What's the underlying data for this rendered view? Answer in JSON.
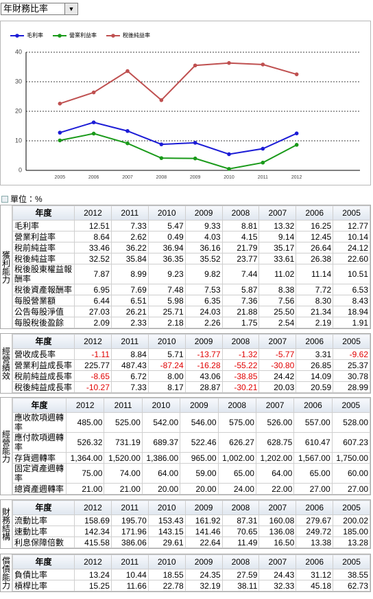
{
  "dropdown": {
    "label": "年財務比率"
  },
  "chart_data": {
    "type": "line",
    "categories": [
      "2005",
      "2006",
      "2007",
      "2008",
      "2009",
      "2010",
      "2011",
      "2012"
    ],
    "series": [
      {
        "name": "毛利率",
        "color": "#1c1cd6",
        "values": [
          12.77,
          16.25,
          13.32,
          8.81,
          9.33,
          5.47,
          7.33,
          12.51
        ]
      },
      {
        "name": "營業利益率",
        "color": "#1a9a1a",
        "values": [
          10.14,
          12.45,
          9.14,
          4.15,
          4.03,
          0.49,
          2.62,
          8.64
        ]
      },
      {
        "name": "稅後純益率",
        "color": "#bf5050",
        "values": [
          22.6,
          26.38,
          33.61,
          23.77,
          35.52,
          36.35,
          35.84,
          32.52
        ]
      }
    ],
    "ylim": [
      0,
      40
    ],
    "yticks": [
      0,
      10,
      20,
      30,
      40
    ],
    "grid": true
  },
  "unit": "單位：%",
  "sections": [
    {
      "label": "獲利能力",
      "header": [
        "年度",
        "2012",
        "2011",
        "2010",
        "2009",
        "2008",
        "2007",
        "2006",
        "2005"
      ],
      "rows": [
        [
          "毛利率",
          "12.51",
          "7.33",
          "5.47",
          "9.33",
          "8.81",
          "13.32",
          "16.25",
          "12.77"
        ],
        [
          "營業利益率",
          "8.64",
          "2.62",
          "0.49",
          "4.03",
          "4.15",
          "9.14",
          "12.45",
          "10.14"
        ],
        [
          "稅前純益率",
          "33.46",
          "36.22",
          "36.94",
          "36.16",
          "21.79",
          "35.17",
          "26.64",
          "24.12"
        ],
        [
          "稅後純益率",
          "32.52",
          "35.84",
          "36.35",
          "35.52",
          "23.77",
          "33.61",
          "26.38",
          "22.60"
        ],
        [
          "稅後股東權益報酬率",
          "7.87",
          "8.99",
          "9.23",
          "9.82",
          "7.44",
          "11.02",
          "11.14",
          "10.51"
        ],
        [
          "稅後資產報酬率",
          "6.95",
          "7.69",
          "7.48",
          "7.53",
          "5.87",
          "8.38",
          "7.72",
          "6.53"
        ],
        [
          "每股營業額",
          "6.44",
          "6.51",
          "5.98",
          "6.35",
          "7.36",
          "7.56",
          "8.30",
          "8.43"
        ],
        [
          "公告每股淨值",
          "27.03",
          "26.21",
          "25.71",
          "24.03",
          "21.88",
          "25.50",
          "21.34",
          "18.94"
        ],
        [
          "每股稅後盈餘",
          "2.09",
          "2.33",
          "2.18",
          "2.26",
          "1.75",
          "2.54",
          "2.19",
          "1.91"
        ]
      ]
    },
    {
      "label": "經營績效",
      "header": [
        "年度",
        "2012",
        "2011",
        "2010",
        "2009",
        "2008",
        "2007",
        "2006",
        "2005"
      ],
      "rows": [
        [
          "營收成長率",
          "-1.11",
          "8.84",
          "5.71",
          "-13.77",
          "-1.32",
          "-5.77",
          "3.31",
          "-9.62"
        ],
        [
          "營業利益成長率",
          "225.77",
          "487.43",
          "-87.24",
          "-16.28",
          "-55.22",
          "-30.80",
          "26.85",
          "25.37"
        ],
        [
          "稅前純益成長率",
          "-8.65",
          "6.72",
          "8.00",
          "43.06",
          "-38.85",
          "24.42",
          "14.09",
          "30.78"
        ],
        [
          "稅後純益成長率",
          "-10.27",
          "7.33",
          "8.17",
          "28.87",
          "-30.21",
          "20.03",
          "20.59",
          "28.99"
        ]
      ]
    },
    {
      "label": "經營能力",
      "header": [
        "年度",
        "2012",
        "2011",
        "2010",
        "2009",
        "2008",
        "2007",
        "2006",
        "2005"
      ],
      "rows": [
        [
          "應收款項週轉率",
          "485.00",
          "525.00",
          "542.00",
          "546.00",
          "575.00",
          "526.00",
          "557.00",
          "528.00"
        ],
        [
          "應付款項週轉率",
          "526.32",
          "731.19",
          "689.37",
          "522.46",
          "626.27",
          "628.75",
          "610.47",
          "607.23"
        ],
        [
          "存貨週轉率",
          "1,364.00",
          "1,520.00",
          "1,386.00",
          "965.00",
          "1,002.00",
          "1,202.00",
          "1,567.00",
          "1,750.00"
        ],
        [
          "固定資產週轉率",
          "75.00",
          "74.00",
          "64.00",
          "59.00",
          "65.00",
          "64.00",
          "65.00",
          "60.00"
        ],
        [
          "總資產週轉率",
          "21.00",
          "21.00",
          "20.00",
          "20.00",
          "24.00",
          "22.00",
          "27.00",
          "27.00"
        ]
      ]
    },
    {
      "label": "財務結構",
      "header": [
        "年度",
        "2012",
        "2011",
        "2010",
        "2009",
        "2008",
        "2007",
        "2006",
        "2005"
      ],
      "rows": [
        [
          "流動比率",
          "158.69",
          "195.70",
          "153.43",
          "161.92",
          "87.31",
          "160.08",
          "279.67",
          "200.02"
        ],
        [
          "速動比率",
          "142.34",
          "171.96",
          "143.15",
          "141.46",
          "70.65",
          "136.08",
          "249.72",
          "185.00"
        ],
        [
          "利息保障倍數",
          "415.58",
          "386.06",
          "29.61",
          "22.64",
          "11.49",
          "16.50",
          "13.38",
          "13.28"
        ]
      ]
    },
    {
      "label": "償債能力",
      "header": [
        "年度",
        "2012",
        "2011",
        "2010",
        "2009",
        "2008",
        "2007",
        "2006",
        "2005"
      ],
      "rows": [
        [
          "負債比率",
          "13.24",
          "10.44",
          "18.55",
          "24.35",
          "27.59",
          "24.43",
          "31.12",
          "38.55"
        ],
        [
          "槓桿比率",
          "15.25",
          "11.66",
          "22.78",
          "32.19",
          "38.11",
          "32.33",
          "45.18",
          "62.73"
        ]
      ]
    }
  ]
}
